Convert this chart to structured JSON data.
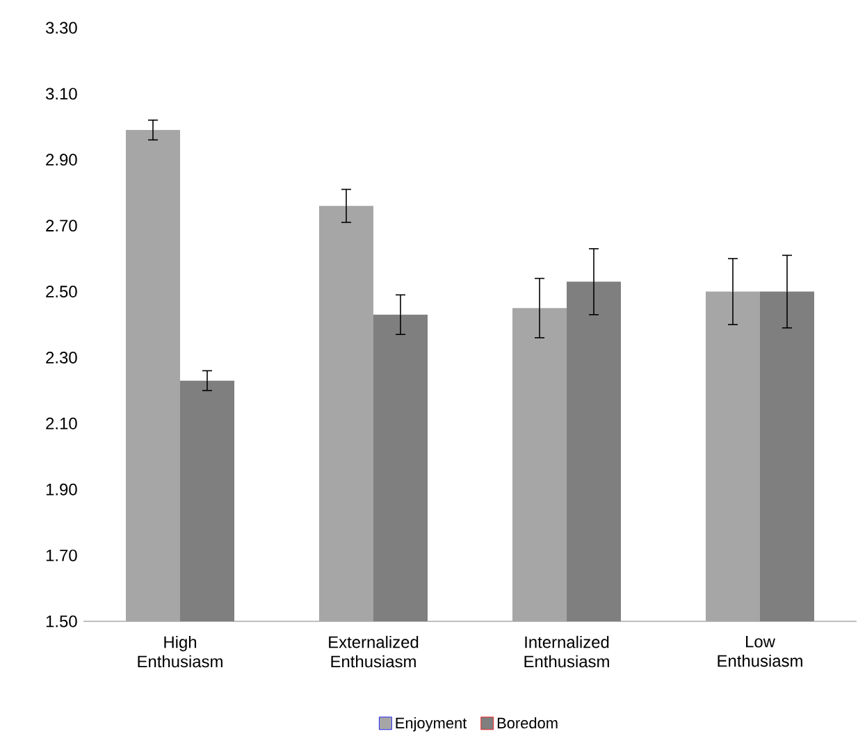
{
  "chart_data": {
    "type": "bar",
    "categories": [
      "High Enthusiasm",
      "Externalized Enthusiasm",
      "Internalized Enthusiasm",
      "Low Enthusiasm"
    ],
    "series": [
      {
        "name": "Enjoyment",
        "color": "#a6a6a6",
        "values": [
          2.99,
          2.76,
          2.45,
          2.5
        ],
        "errors": [
          0.03,
          0.05,
          0.09,
          0.1
        ]
      },
      {
        "name": "Boredom",
        "color": "#7f7f7f",
        "values": [
          2.23,
          2.43,
          2.53,
          2.5
        ],
        "errors": [
          0.03,
          0.06,
          0.1,
          0.11
        ]
      }
    ],
    "ylim": [
      1.5,
      3.3
    ],
    "yticks": [
      {
        "value": 1.5,
        "label": "1.50"
      },
      {
        "value": 1.7,
        "label": "1.70"
      },
      {
        "value": 1.9,
        "label": "1.90"
      },
      {
        "value": 2.1,
        "label": "2.10"
      },
      {
        "value": 2.3,
        "label": "2.30"
      },
      {
        "value": 2.5,
        "label": "2.50"
      },
      {
        "value": 2.7,
        "label": "2.70"
      },
      {
        "value": 2.9,
        "label": "2.90"
      },
      {
        "value": 3.1,
        "label": "3.10"
      },
      {
        "value": 3.3,
        "label": "3.30"
      }
    ],
    "grid": false,
    "legend": "bottom"
  }
}
